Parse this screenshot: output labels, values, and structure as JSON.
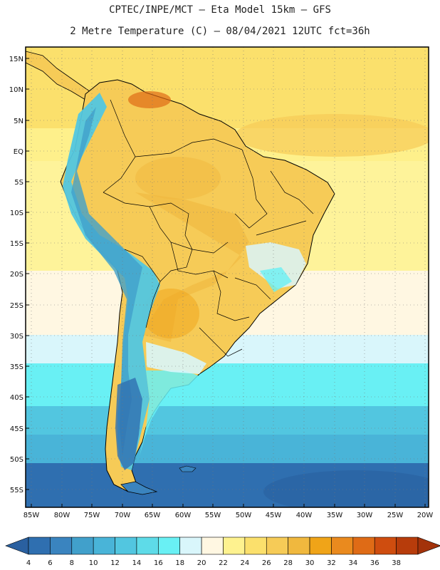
{
  "title_line1": "CPTEC/INPE/MCT –  Eta Model 15km – GFS",
  "title_line2": "2 Metre Temperature (C) – 08/04/2021 12UTC fct=36h",
  "lat_labels": [
    "15N",
    "10N",
    "5N",
    "EQ",
    "5S",
    "10S",
    "15S",
    "20S",
    "25S",
    "30S",
    "35S",
    "40S",
    "45S",
    "50S",
    "55S"
  ],
  "lon_labels": [
    "85W",
    "80W",
    "75W",
    "70W",
    "65W",
    "60W",
    "55W",
    "50W",
    "45W",
    "40W",
    "35W",
    "30W",
    "25W",
    "20W"
  ],
  "colorbar": {
    "labels": [
      "4",
      "6",
      "8",
      "10",
      "12",
      "14",
      "16",
      "18",
      "20",
      "22",
      "24",
      "26",
      "28",
      "30",
      "32",
      "34",
      "36",
      "38"
    ],
    "colors": [
      "#2f6fb0",
      "#3a84bf",
      "#41a0cb",
      "#49b4d8",
      "#52c6e0",
      "#5edbe8",
      "#69f0f4",
      "#d9f6fb",
      "#fff7e2",
      "#fef28f",
      "#fbe06c",
      "#f6cb57",
      "#f0b83e",
      "#f0a418",
      "#ea8a1e",
      "#df6b16",
      "#cf4d0f",
      "#b73c0b"
    ],
    "left_arrow_color": "#2a60a0",
    "right_arrow_color": "#a3320a"
  },
  "map_colors": {
    "ocean_north": "#fbe06c",
    "ocean_mid": "#fef28f",
    "ocean_cold1": "#69f0f4",
    "ocean_cold2": "#49b4d8",
    "ocean_cold3": "#2f6fb0",
    "land_warm": "#f6cb57",
    "andes": "#52c6e0",
    "patagonia": "#3a84bf"
  }
}
